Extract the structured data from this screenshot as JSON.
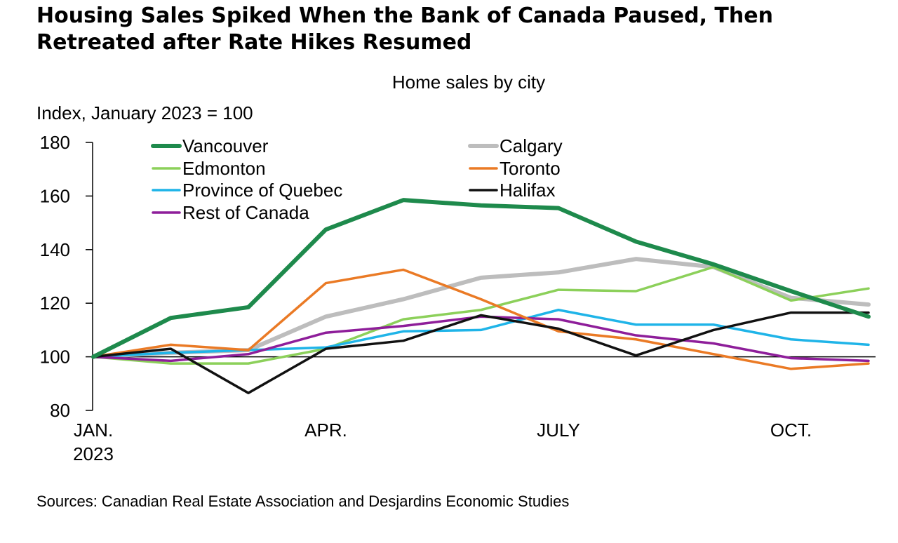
{
  "chart_data": {
    "type": "line",
    "title_lines": [
      "Housing Sales Spiked When the Bank of Canada Paused, Then",
      "Retreated after Rate Hikes Resumed"
    ],
    "subtitle": "Home sales by city",
    "ylabel": "Index, January 2023 = 100",
    "source": "Sources: Canadian Real Estate Association and Desjardins Economic Studies",
    "x": [
      "2023-01",
      "2023-02",
      "2023-03",
      "2023-04",
      "2023-05",
      "2023-06",
      "2023-07",
      "2023-08",
      "2023-09",
      "2023-10",
      "2023-11"
    ],
    "x_ticks": [
      {
        "index": 0,
        "lines": [
          "JAN.",
          "2023"
        ]
      },
      {
        "index": 3,
        "lines": [
          "APR."
        ]
      },
      {
        "index": 6,
        "lines": [
          "JULY"
        ]
      },
      {
        "index": 9,
        "lines": [
          "OCT."
        ]
      }
    ],
    "ylim": [
      80,
      180
    ],
    "yticks": [
      80,
      100,
      120,
      140,
      160,
      180
    ],
    "reference_line": 100,
    "grid": false,
    "legend_placement": "top-left, two columns",
    "series": [
      {
        "name": "Vancouver",
        "color": "#1e8a4c",
        "width": "thick",
        "values": [
          100,
          114.5,
          118.5,
          147.5,
          158.5,
          156.5,
          155.5,
          143,
          134.5,
          124.5,
          115
        ]
      },
      {
        "name": "Calgary",
        "color": "#bdbdbd",
        "width": "thick",
        "values": [
          100,
          101.5,
          102.5,
          115,
          121.5,
          129.5,
          131.5,
          136.5,
          133.5,
          122,
          119.5
        ]
      },
      {
        "name": "Edmonton",
        "color": "#8cd05a",
        "width": "medium",
        "values": [
          100,
          97.5,
          97.5,
          103,
          114,
          117.5,
          125,
          124.5,
          133.5,
          121,
          125.5
        ]
      },
      {
        "name": "Toronto",
        "color": "#ea7a25",
        "width": "medium",
        "values": [
          100,
          104.5,
          102.5,
          127.5,
          132.5,
          121.5,
          109.5,
          106.5,
          101,
          95.5,
          97.5
        ]
      },
      {
        "name": "Province of Quebec",
        "color": "#1fb4e8",
        "width": "medium",
        "values": [
          100,
          101.5,
          102.5,
          103.5,
          109.5,
          110,
          117.5,
          112,
          112,
          106.5,
          104.5
        ]
      },
      {
        "name": "Halifax",
        "color": "#111111",
        "width": "medium",
        "values": [
          100,
          103,
          86.5,
          103,
          106,
          115.5,
          110.5,
          100.5,
          110,
          116.5,
          116.5
        ]
      },
      {
        "name": "Rest of Canada",
        "color": "#8e1e9a",
        "width": "medium",
        "values": [
          100,
          98.5,
          101,
          109,
          111.5,
          115,
          114,
          108,
          105,
          99.5,
          98.5
        ]
      }
    ]
  }
}
